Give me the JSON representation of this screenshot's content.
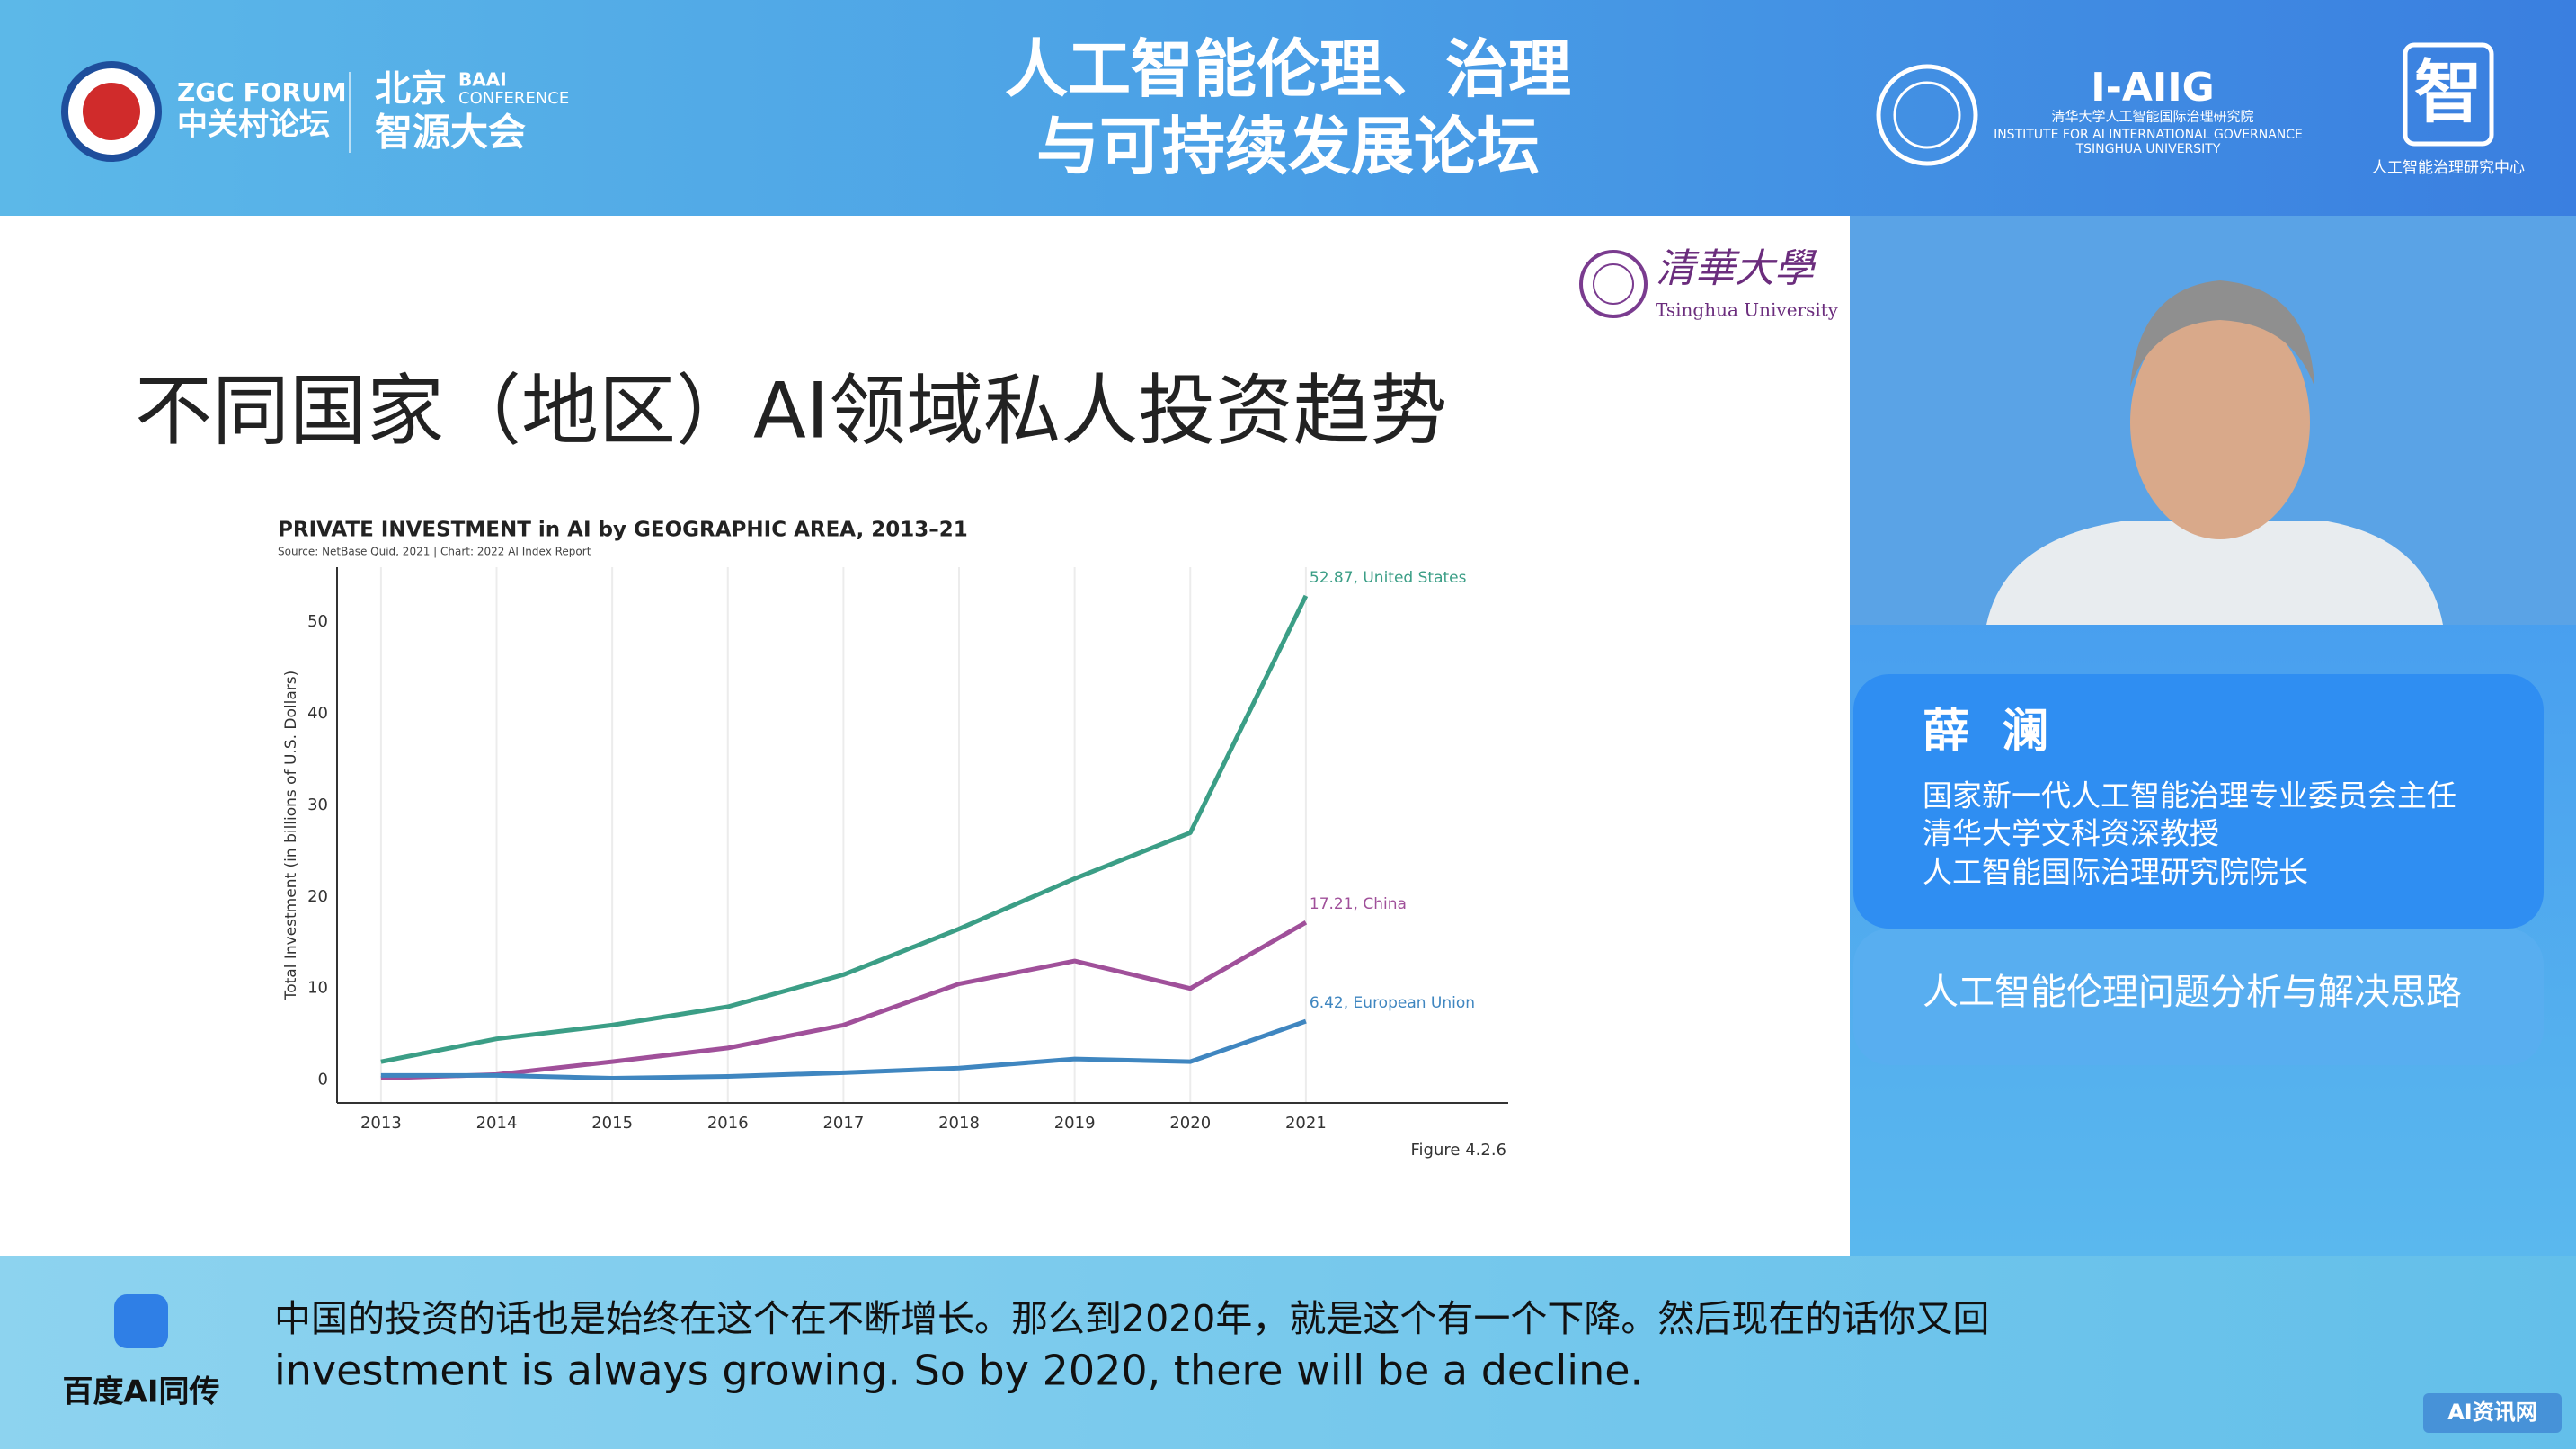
{
  "header": {
    "zgc_forum": "ZGC FORUM",
    "zgc_forum_cn": "中关村论坛",
    "beijing": "北京",
    "baai": "BAAI",
    "conference": "CONFERENCE",
    "zhiyuan": "智源大会",
    "title_line1": "人工智能伦理、治理",
    "title_line2": "与可持续发展论坛",
    "iaiig": "I-AIIG",
    "iaiig_cn": "清华大学人工智能国际治理研究院",
    "iaiig_en1": "INSTITUTE FOR AI INTERNATIONAL GOVERNANCE",
    "iaiig_en2": "TSINGHUA UNIVERSITY",
    "center_logo_char": "智",
    "center_name": "人工智能治理研究中心"
  },
  "slide": {
    "university_cn": "清華大學",
    "university_en": "Tsinghua University",
    "title": "不同国家（地区）AI领域私人投资趋势"
  },
  "chart_data": {
    "type": "line",
    "title": "PRIVATE INVESTMENT in AI by GEOGRAPHIC AREA, 2013–21",
    "source": "Source: NetBase Quid, 2021 | Chart: 2022 AI Index Report",
    "ylabel": "Total Investment (in billions of U.S. Dollars)",
    "figure_label": "Figure 4.2.6",
    "x": [
      2013,
      2014,
      2015,
      2016,
      2017,
      2018,
      2019,
      2020,
      2021
    ],
    "xlim": [
      2012.62,
      2022.75
    ],
    "xticks": [
      2013,
      2014,
      2015,
      2016,
      2017,
      2018,
      2019,
      2020,
      2021
    ],
    "ylim": [
      -2.5,
      56
    ],
    "yticks": [
      0,
      10,
      20,
      30,
      40,
      50
    ],
    "grid": true,
    "series": [
      {
        "color": "#3b9e86",
        "values": [
          2,
          4.5,
          6,
          8,
          11.5,
          16.5,
          22,
          27,
          52.87
        ],
        "value_labels": [
          null,
          null,
          null,
          null,
          null,
          null,
          null,
          null,
          "52.87, United States"
        ]
      },
      {
        "color": "#a0509a",
        "values": [
          0.2,
          0.6,
          2,
          3.5,
          6,
          10.5,
          13,
          10,
          17.21
        ],
        "value_labels": [
          null,
          null,
          null,
          null,
          null,
          null,
          null,
          null,
          "17.21, China"
        ]
      },
      {
        "color": "#3f86c0",
        "values": [
          0.5,
          0.5,
          0.2,
          0.4,
          0.8,
          1.3,
          2.3,
          2,
          6.42
        ],
        "value_labels": [
          null,
          null,
          null,
          null,
          null,
          null,
          null,
          null,
          "6.42, European Union"
        ]
      }
    ]
  },
  "speaker": {
    "name": "薛  澜",
    "roles": [
      "国家新一代人工智能治理专业委员会主任",
      "清华大学文科资深教授",
      "人工智能国际治理研究院院长"
    ],
    "topic": "人工智能伦理问题分析与解决思路"
  },
  "subtitles": {
    "provider": "百度AI同传",
    "zh": "中国的投资的话也是始终在这个在不断增长。那么到2020年，就是这个有一个下降。然后现在的话你又回",
    "en": "investment is always growing. So by 2020, there will be a decline."
  },
  "watermark": "AI资讯网"
}
